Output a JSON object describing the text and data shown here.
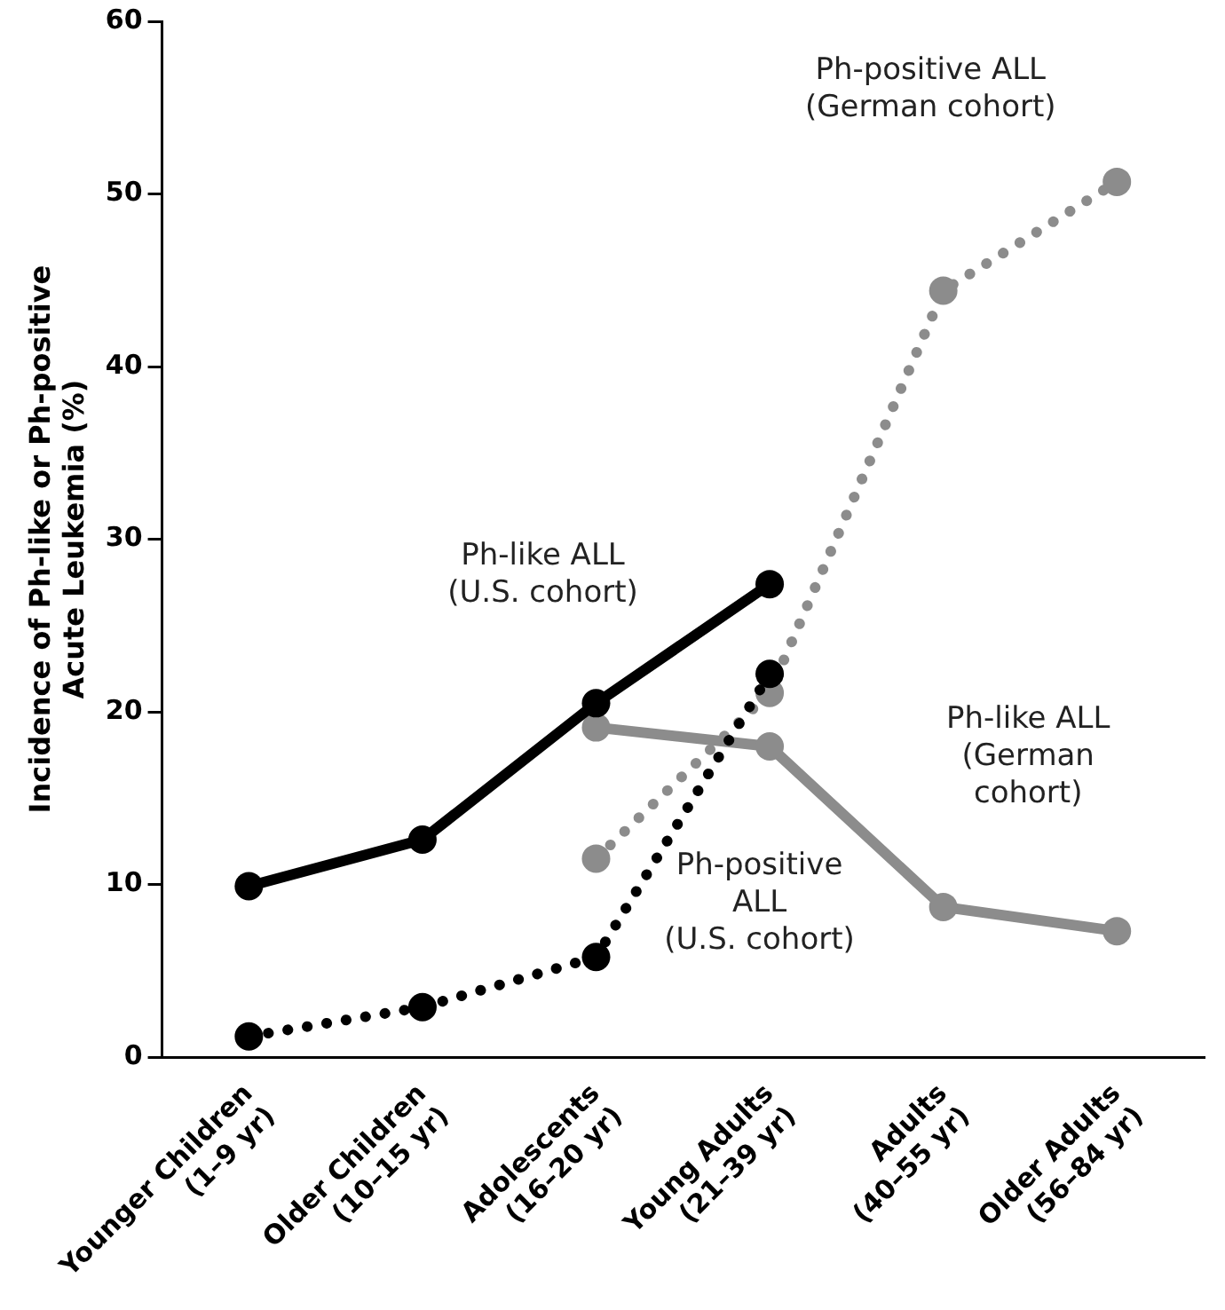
{
  "chart_data": {
    "type": "line",
    "ylabel": "Incidence of Ph-like or Ph-positive\nAcute Leukemia (%)",
    "categories": [
      "Younger Children\n(1–9 yr)",
      "Older Children\n(10–15 yr)",
      "Adolescents\n(16–20 yr)",
      "Young Adults\n(21–39 yr)",
      "Adults\n(40–55 yr)",
      "Older Adults\n(56–84 yr)"
    ],
    "series": [
      {
        "name": "Ph-like ALL\n(U.S. cohort)",
        "color": "#000000",
        "line_style": "solid",
        "values": [
          9.9,
          12.6,
          20.5,
          27.4,
          null,
          null
        ]
      },
      {
        "name": "Ph-positive\nALL\n(U.S. cohort)",
        "color": "#000000",
        "line_style": "dotted",
        "values": [
          1.2,
          2.9,
          5.8,
          22.2,
          null,
          null
        ]
      },
      {
        "name": "Ph-positive ALL\n(German cohort)",
        "color": "#8c8c8c",
        "line_style": "dotted",
        "values": [
          null,
          null,
          11.5,
          21.1,
          44.4,
          50.7
        ]
      },
      {
        "name": "Ph-like ALL\n(German\ncohort)",
        "color": "#8c8c8c",
        "line_style": "solid",
        "values": [
          null,
          null,
          19.1,
          18.0,
          8.7,
          7.3
        ]
      }
    ],
    "ylim": [
      0,
      60
    ],
    "yticks": [
      0,
      10,
      20,
      30,
      40,
      50,
      60
    ],
    "grid": false,
    "legend": false,
    "marker": "circle"
  }
}
